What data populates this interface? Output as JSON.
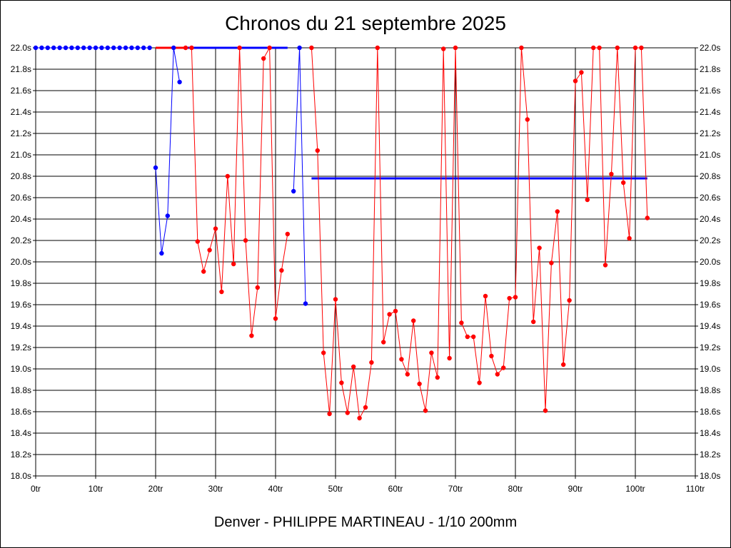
{
  "chart_data": {
    "type": "line",
    "title": "Chronos du 21 septembre 2025",
    "subtitle": "Denver - PHILIPPE MARTINEAU - 1/10 200mm",
    "xlim": [
      0,
      110
    ],
    "ylim": [
      18.0,
      22.0
    ],
    "x_ticks": [
      "0tr",
      "10tr",
      "20tr",
      "30tr",
      "40tr",
      "50tr",
      "60tr",
      "70tr",
      "80tr",
      "90tr",
      "100tr",
      "110tr"
    ],
    "y_ticks": [
      "18.0s",
      "18.2s",
      "18.4s",
      "18.6s",
      "18.8s",
      "19.0s",
      "19.2s",
      "19.4s",
      "19.6s",
      "19.8s",
      "20.0s",
      "20.2s",
      "20.4s",
      "20.6s",
      "20.8s",
      "21.0s",
      "21.2s",
      "21.4s",
      "21.6s",
      "21.8s",
      "22.0s"
    ],
    "grid": true,
    "colors": {
      "red": "#ff0000",
      "blue": "#0000ff",
      "grid": "#000000"
    },
    "series": [
      {
        "color": "#0000ff",
        "x": [
          0,
          1,
          2,
          3,
          4,
          5,
          6,
          7,
          8,
          9,
          10,
          11,
          12,
          13,
          14,
          15,
          16,
          17,
          18,
          19
        ],
        "y": [
          22.0,
          22.0,
          22.0,
          22.0,
          22.0,
          22.0,
          22.0,
          22.0,
          22.0,
          22.0,
          22.0,
          22.0,
          22.0,
          22.0,
          22.0,
          22.0,
          22.0,
          22.0,
          22.0,
          22.0
        ]
      },
      {
        "color": "#0000ff",
        "x": [
          20,
          21,
          22,
          23,
          24
        ],
        "y": [
          20.88,
          20.08,
          20.43,
          22.0,
          21.68
        ]
      },
      {
        "color": "#ff0000",
        "x": [
          25,
          26,
          27,
          28,
          29,
          30,
          31,
          32,
          33,
          34,
          35,
          36,
          37,
          38,
          39,
          40,
          41,
          42
        ],
        "y": [
          22.0,
          22.0,
          20.19,
          19.91,
          20.11,
          20.31,
          19.72,
          20.8,
          19.98,
          22.0,
          20.2,
          19.31,
          19.76,
          21.9,
          22.0,
          19.47,
          19.92,
          20.26
        ]
      },
      {
        "color": "#0000ff",
        "x": [
          43,
          44,
          45
        ],
        "y": [
          20.66,
          22.0,
          19.61
        ]
      },
      {
        "color": "#ff0000",
        "x": [
          46,
          47,
          48,
          49,
          50,
          51,
          52,
          53,
          54,
          55,
          56,
          57,
          58,
          59,
          60,
          61,
          62,
          63,
          64,
          65,
          66,
          67,
          68,
          69,
          70,
          71,
          72,
          73,
          74,
          75,
          76,
          77,
          78,
          79,
          80,
          81,
          82,
          83,
          84,
          85,
          86,
          87,
          88,
          89,
          90,
          91,
          92,
          93,
          94,
          95,
          96,
          97,
          98,
          99,
          100,
          101,
          102
        ],
        "y": [
          22.0,
          21.04,
          19.15,
          18.58,
          19.65,
          18.87,
          18.59,
          19.02,
          18.54,
          18.64,
          19.06,
          22.0,
          19.25,
          19.51,
          19.54,
          19.09,
          18.95,
          19.45,
          18.86,
          18.61,
          19.15,
          18.92,
          21.99,
          19.1,
          22.0,
          19.43,
          19.3,
          19.3,
          18.87,
          19.68,
          19.12,
          18.95,
          19.01,
          19.66,
          19.67,
          22.0,
          21.33,
          19.44,
          20.13,
          18.61,
          19.99,
          20.47,
          19.04,
          19.64,
          21.69,
          21.77,
          20.58,
          22.0,
          22.0,
          19.97,
          20.82,
          22.0,
          20.74,
          20.22,
          22.0,
          22.0,
          20.41
        ]
      }
    ],
    "reference_lines": [
      {
        "color": "#ff0000",
        "x": [
          20,
          25
        ],
        "y": 22.0
      },
      {
        "color": "#0000ff",
        "x": [
          25,
          42
        ],
        "y": 22.0
      },
      {
        "color": "#0000ff",
        "x": [
          46,
          102
        ],
        "y": 20.78
      }
    ]
  }
}
